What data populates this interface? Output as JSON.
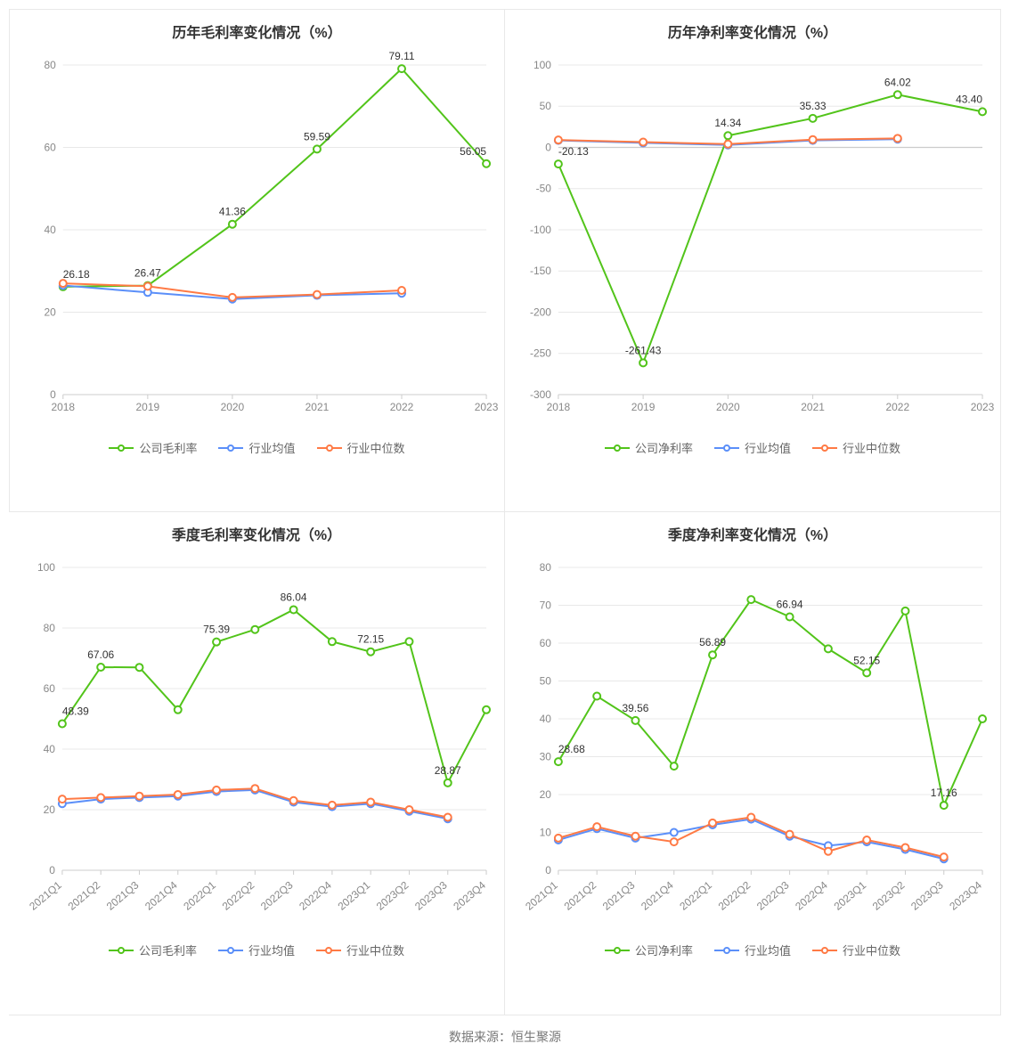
{
  "footer": "数据来源：恒生聚源",
  "colors": {
    "company": "#52c41a",
    "industry_avg": "#5b8ff9",
    "industry_median": "#ff7a45",
    "axis": "#cccccc",
    "grid": "#e8e8e8",
    "text": "#333333",
    "tick": "#888888",
    "background": "#ffffff"
  },
  "typography": {
    "title_fontsize": 16,
    "title_fontweight": 700,
    "label_fontsize": 12,
    "legend_fontsize": 13
  },
  "marker": {
    "radius": 4,
    "line_width": 2
  },
  "charts": [
    {
      "id": "annual_gross",
      "title": "历年毛利率变化情况（%）",
      "type": "line",
      "x_categories": [
        "2018",
        "2019",
        "2020",
        "2021",
        "2022",
        "2023"
      ],
      "x_rotate": 0,
      "ylim": [
        0,
        80
      ],
      "ytick_step": 20,
      "series": [
        {
          "name": "公司毛利率",
          "color_key": "company",
          "values": [
            26.18,
            26.47,
            41.36,
            59.59,
            79.11,
            56.05
          ],
          "labels": {
            "0": "26.18",
            "1": "26.47",
            "2": "41.36",
            "3": "59.59",
            "4": "79.11",
            "5": "56.05"
          }
        },
        {
          "name": "行业均值",
          "color_key": "industry_avg",
          "values": [
            26.5,
            24.8,
            23.2,
            24.1,
            24.6,
            null
          ],
          "labels": {}
        },
        {
          "name": "行业中位数",
          "color_key": "industry_median",
          "values": [
            27.0,
            26.3,
            23.6,
            24.3,
            25.3,
            null
          ],
          "labels": {}
        }
      ],
      "legend": [
        "公司毛利率",
        "行业均值",
        "行业中位数"
      ]
    },
    {
      "id": "annual_net",
      "title": "历年净利率变化情况（%）",
      "type": "line",
      "x_categories": [
        "2018",
        "2019",
        "2020",
        "2021",
        "2022",
        "2023"
      ],
      "x_rotate": 0,
      "ylim": [
        -300,
        100
      ],
      "ytick_step": 50,
      "series": [
        {
          "name": "公司净利率",
          "color_key": "company",
          "values": [
            -20.13,
            -261.43,
            14.34,
            35.33,
            64.02,
            43.4
          ],
          "labels": {
            "0": "-20.13",
            "1": "-261.43",
            "2": "14.34",
            "3": "35.33",
            "4": "64.02",
            "5": "43.40"
          }
        },
        {
          "name": "行业均值",
          "color_key": "industry_avg",
          "values": [
            8.5,
            5.5,
            3.0,
            8.5,
            10.0,
            null
          ],
          "labels": {}
        },
        {
          "name": "行业中位数",
          "color_key": "industry_median",
          "values": [
            9.0,
            6.5,
            4.0,
            9.5,
            11.0,
            null
          ],
          "labels": {}
        }
      ],
      "legend": [
        "公司净利率",
        "行业均值",
        "行业中位数"
      ]
    },
    {
      "id": "quarter_gross",
      "title": "季度毛利率变化情况（%）",
      "type": "line",
      "x_categories": [
        "2021Q1",
        "2021Q2",
        "2021Q3",
        "2021Q4",
        "2022Q1",
        "2022Q2",
        "2022Q3",
        "2022Q4",
        "2023Q1",
        "2023Q2",
        "2023Q3",
        "2023Q4"
      ],
      "x_rotate": -40,
      "ylim": [
        0,
        100
      ],
      "ytick_step": 20,
      "series": [
        {
          "name": "公司毛利率",
          "color_key": "company",
          "values": [
            48.39,
            67.06,
            67.0,
            53.0,
            75.39,
            79.5,
            86.04,
            75.5,
            72.15,
            75.5,
            28.87,
            53.0
          ],
          "labels": {
            "0": "48.39",
            "1": "67.06",
            "4": "75.39",
            "6": "86.04",
            "8": "72.15",
            "10": "28.87"
          }
        },
        {
          "name": "行业均值",
          "color_key": "industry_avg",
          "values": [
            22.0,
            23.5,
            24.0,
            24.5,
            26.0,
            26.5,
            22.5,
            21.0,
            22.0,
            19.5,
            17.0,
            null
          ],
          "labels": {}
        },
        {
          "name": "行业中位数",
          "color_key": "industry_median",
          "values": [
            23.5,
            24.0,
            24.5,
            25.0,
            26.5,
            27.0,
            23.0,
            21.5,
            22.5,
            20.0,
            17.5,
            null
          ],
          "labels": {}
        }
      ],
      "legend": [
        "公司毛利率",
        "行业均值",
        "行业中位数"
      ]
    },
    {
      "id": "quarter_net",
      "title": "季度净利率变化情况（%）",
      "type": "line",
      "x_categories": [
        "2021Q1",
        "2021Q2",
        "2021Q3",
        "2021Q4",
        "2022Q1",
        "2022Q2",
        "2022Q3",
        "2022Q4",
        "2023Q1",
        "2023Q2",
        "2023Q3",
        "2023Q4"
      ],
      "x_rotate": -40,
      "ylim": [
        0,
        80
      ],
      "ytick_step": 10,
      "series": [
        {
          "name": "公司净利率",
          "color_key": "company",
          "values": [
            28.68,
            46.0,
            39.56,
            27.5,
            56.89,
            71.5,
            66.94,
            58.5,
            52.15,
            68.5,
            17.16,
            40.0
          ],
          "labels": {
            "0": "28.68",
            "2": "39.56",
            "4": "56.89",
            "6": "66.94",
            "8": "52.15",
            "10": "17.16"
          }
        },
        {
          "name": "行业均值",
          "color_key": "industry_avg",
          "values": [
            8.0,
            11.0,
            8.5,
            10.0,
            12.0,
            13.5,
            9.0,
            6.5,
            7.5,
            5.5,
            3.0,
            null
          ],
          "labels": {}
        },
        {
          "name": "行业中位数",
          "color_key": "industry_median",
          "values": [
            8.5,
            11.5,
            9.0,
            7.5,
            12.5,
            14.0,
            9.5,
            5.0,
            8.0,
            6.0,
            3.5,
            null
          ],
          "labels": {}
        }
      ],
      "legend": [
        "公司净利率",
        "行业均值",
        "行业中位数"
      ]
    }
  ]
}
